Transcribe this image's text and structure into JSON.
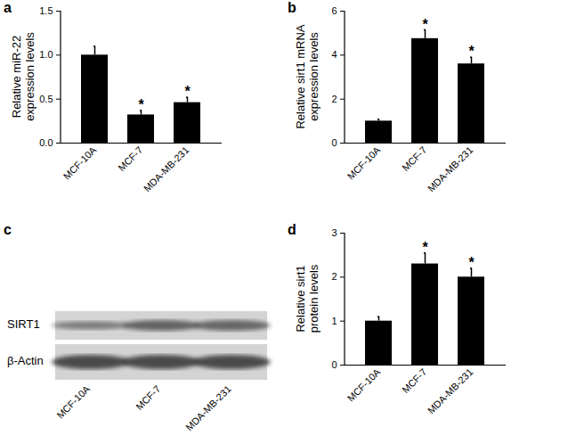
{
  "chart_data": [
    {
      "type": "bar",
      "title": "a",
      "categories": [
        "MCF-10A",
        "MCF-7",
        "MDA-MB-231"
      ],
      "values": [
        1.0,
        0.32,
        0.46
      ],
      "errors": [
        0.1,
        0.05,
        0.06
      ],
      "annotations": [
        {
          "category": "MCF-7",
          "text": "*"
        },
        {
          "category": "MDA-MB-231",
          "text": "*"
        }
      ],
      "y_label": "Relative miR-22\nexpression levels",
      "color": "#000000",
      "ylim": [
        0,
        1.5
      ],
      "yticks": [
        {
          "value": 0,
          "label": "0.0"
        },
        {
          "value": 0.5,
          "label": "0.5"
        },
        {
          "value": 1.0,
          "label": "1.0"
        },
        {
          "value": 1.5,
          "label": "1.5"
        }
      ]
    },
    {
      "type": "bar",
      "title": "b",
      "categories": [
        "MCF-10A",
        "MCF-7",
        "MDA-MB-231"
      ],
      "values": [
        1.0,
        4.75,
        3.6
      ],
      "errors": [
        0.08,
        0.4,
        0.3
      ],
      "annotations": [
        {
          "category": "MCF-7",
          "text": "*"
        },
        {
          "category": "MDA-MB-231",
          "text": "*"
        }
      ],
      "y_label": "Relative sirt1 mRNA\nexpression levels",
      "color": "#000000",
      "ylim": [
        0,
        6
      ],
      "yticks": [
        0,
        2,
        4,
        6
      ]
    },
    {
      "type": "blot",
      "title": "c",
      "lanes": [
        "MCF-10A",
        "MCF-7",
        "MDA-MB-231"
      ],
      "rows": [
        "SIRT1",
        "β-Actin"
      ]
    },
    {
      "type": "bar",
      "title": "d",
      "categories": [
        "MCF-10A",
        "MCF-7",
        "MDA-MB-231"
      ],
      "values": [
        1.0,
        2.3,
        2.0
      ],
      "errors": [
        0.1,
        0.25,
        0.2
      ],
      "annotations": [
        {
          "category": "MCF-7",
          "text": "*"
        },
        {
          "category": "MDA-MB-231",
          "text": "*"
        }
      ],
      "y_label": "Relative sirt1\nprotein levels",
      "color": "#000000",
      "ylim": [
        0,
        3
      ],
      "yticks": [
        0,
        1,
        2,
        3
      ]
    }
  ]
}
